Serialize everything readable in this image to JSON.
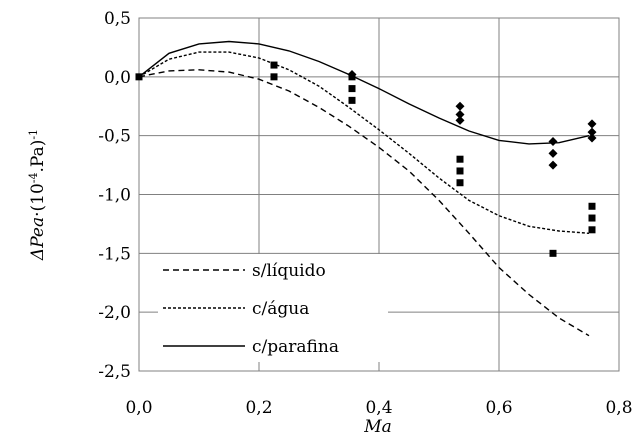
{
  "chart_data": {
    "type": "line",
    "xlabel": "Ma",
    "ylabel": {
      "italic": "ΔPea",
      "rest": "·(10",
      "sup1": "-4",
      "rest2": ".Pa)",
      "sup2": "-1"
    },
    "xlim": [
      0.0,
      0.8
    ],
    "ylim": [
      -2.5,
      0.5
    ],
    "xticks": [
      "0,0",
      "0,2",
      "0,4",
      "0,6",
      "0,8"
    ],
    "yticks": [
      "0,5",
      "0,0",
      "-0,5",
      "-1,0",
      "-1,5",
      "-2,0",
      "-2,5"
    ],
    "grid": true,
    "legend_position": "bottom-left",
    "series": [
      {
        "name": "s/líquido",
        "style": "dashed",
        "x": [
          0.0,
          0.05,
          0.1,
          0.15,
          0.2,
          0.25,
          0.3,
          0.35,
          0.4,
          0.45,
          0.5,
          0.55,
          0.6,
          0.65,
          0.7,
          0.75
        ],
        "y": [
          0.0,
          0.05,
          0.06,
          0.04,
          -0.02,
          -0.12,
          -0.26,
          -0.42,
          -0.6,
          -0.8,
          -1.05,
          -1.33,
          -1.62,
          -1.85,
          -2.05,
          -2.2
        ]
      },
      {
        "name": "c/água",
        "style": "dotted",
        "x": [
          0.0,
          0.05,
          0.1,
          0.15,
          0.2,
          0.25,
          0.3,
          0.35,
          0.4,
          0.45,
          0.5,
          0.55,
          0.6,
          0.65,
          0.7,
          0.75
        ],
        "y": [
          0.0,
          0.15,
          0.21,
          0.21,
          0.16,
          0.06,
          -0.08,
          -0.26,
          -0.45,
          -0.65,
          -0.86,
          -1.05,
          -1.18,
          -1.27,
          -1.31,
          -1.33
        ]
      },
      {
        "name": "c/parafina",
        "style": "solid",
        "x": [
          0.0,
          0.05,
          0.1,
          0.15,
          0.2,
          0.25,
          0.3,
          0.35,
          0.4,
          0.45,
          0.5,
          0.55,
          0.6,
          0.65,
          0.7,
          0.75
        ],
        "y": [
          0.0,
          0.2,
          0.28,
          0.3,
          0.28,
          0.22,
          0.13,
          0.02,
          -0.1,
          -0.23,
          -0.35,
          -0.46,
          -0.54,
          -0.57,
          -0.56,
          -0.5
        ]
      }
    ],
    "markers": [
      {
        "shape": "square",
        "points": [
          [
            0.0,
            0.0
          ],
          [
            0.225,
            0.1
          ],
          [
            0.225,
            0.0
          ],
          [
            0.355,
            0.0
          ],
          [
            0.355,
            -0.1
          ],
          [
            0.355,
            -0.2
          ],
          [
            0.535,
            -0.7
          ],
          [
            0.535,
            -0.8
          ],
          [
            0.535,
            -0.9
          ],
          [
            0.69,
            -1.5
          ],
          [
            0.755,
            -1.1
          ],
          [
            0.755,
            -1.2
          ],
          [
            0.755,
            -1.3
          ]
        ]
      },
      {
        "shape": "diamond",
        "points": [
          [
            0.355,
            0.02
          ],
          [
            0.535,
            -0.25
          ],
          [
            0.535,
            -0.32
          ],
          [
            0.535,
            -0.37
          ],
          [
            0.69,
            -0.55
          ],
          [
            0.69,
            -0.65
          ],
          [
            0.69,
            -0.75
          ],
          [
            0.755,
            -0.4
          ],
          [
            0.755,
            -0.47
          ],
          [
            0.755,
            -0.52
          ]
        ]
      }
    ]
  }
}
